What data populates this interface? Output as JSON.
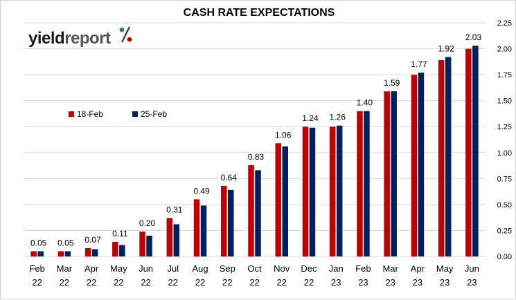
{
  "logo": {
    "text_dark": "yield",
    "text_light": "report",
    "symbol": "%",
    "color_dark": "#1a1a1a",
    "color_light": "#555555",
    "symbol_color_top": "#2e7d32",
    "symbol_color_bottom": "#c00000"
  },
  "chart_data": {
    "type": "bar",
    "title": "CASH RATE EXPECTATIONS",
    "categories": [
      [
        "Feb",
        "22"
      ],
      [
        "Mar",
        "22"
      ],
      [
        "Apr",
        "22"
      ],
      [
        "May",
        "22"
      ],
      [
        "Jun",
        "22"
      ],
      [
        "Jul",
        "22"
      ],
      [
        "Aug",
        "22"
      ],
      [
        "Sep",
        "22"
      ],
      [
        "Oct",
        "22"
      ],
      [
        "Nov",
        "22"
      ],
      [
        "Dec",
        "22"
      ],
      [
        "Jan",
        "23"
      ],
      [
        "Feb",
        "23"
      ],
      [
        "Mar",
        "23"
      ],
      [
        "Apr",
        "23"
      ],
      [
        "May",
        "23"
      ],
      [
        "Jun",
        "23"
      ]
    ],
    "series": [
      {
        "name": "18-Feb",
        "color": "#c00000",
        "values": [
          0.05,
          0.05,
          0.08,
          0.14,
          0.24,
          0.37,
          0.55,
          0.68,
          0.88,
          1.09,
          1.25,
          1.25,
          1.4,
          1.59,
          1.75,
          1.89,
          2.0
        ]
      },
      {
        "name": "25-Feb",
        "color": "#002060",
        "values": [
          0.05,
          0.05,
          0.07,
          0.11,
          0.2,
          0.31,
          0.49,
          0.64,
          0.83,
          1.06,
          1.24,
          1.26,
          1.4,
          1.59,
          1.77,
          1.92,
          2.03
        ]
      }
    ],
    "data_labels": [
      "0.05",
      "0.05",
      "0.07",
      "0.11",
      "0.20",
      "0.31",
      "0.49",
      "0.64",
      "0.83",
      "1.06",
      "1.24",
      "1.26",
      "1.40",
      "1.59",
      "1.77",
      "1.92",
      "2.03"
    ],
    "ylim": [
      0,
      2.25
    ],
    "yticks": [
      "0.00",
      "0.25",
      "0.50",
      "0.75",
      "1.00",
      "1.25",
      "1.50",
      "1.75",
      "2.00",
      "2.25"
    ],
    "y_axis_side": "right",
    "grid": true,
    "legend_position": "upper-left, inside plot"
  }
}
